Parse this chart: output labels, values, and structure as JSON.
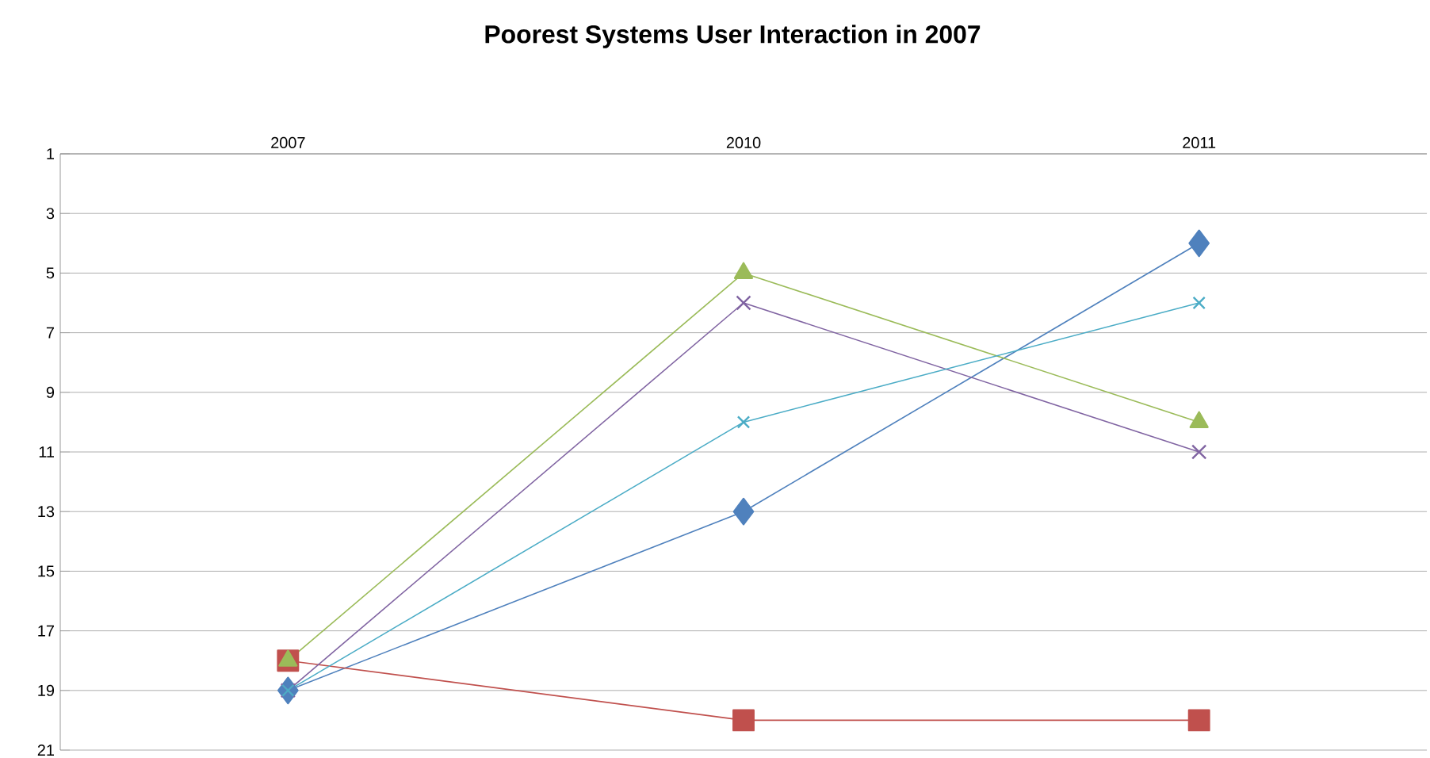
{
  "chart_data": {
    "type": "line",
    "title": "Poorest Systems User Interaction in 2007",
    "categories": [
      "2007",
      "2010",
      "2011"
    ],
    "series": [
      {
        "color": "#4f81bd",
        "marker": "diamond",
        "values": [
          19,
          13,
          4
        ]
      },
      {
        "color": "#c0504d",
        "marker": "square",
        "values": [
          18,
          20,
          20
        ]
      },
      {
        "color": "#9bbb59",
        "marker": "triangle",
        "values": [
          18,
          5,
          10
        ]
      },
      {
        "color": "#8064a2",
        "marker": "cross",
        "values": [
          19,
          6,
          11
        ]
      },
      {
        "color": "#4bacc6",
        "marker": "cross",
        "values": [
          19,
          10,
          6
        ]
      }
    ],
    "ylim": [
      21,
      1
    ],
    "yticks": [
      1,
      3,
      5,
      7,
      9,
      11,
      13,
      15,
      17,
      19,
      21
    ],
    "grid": "y"
  }
}
